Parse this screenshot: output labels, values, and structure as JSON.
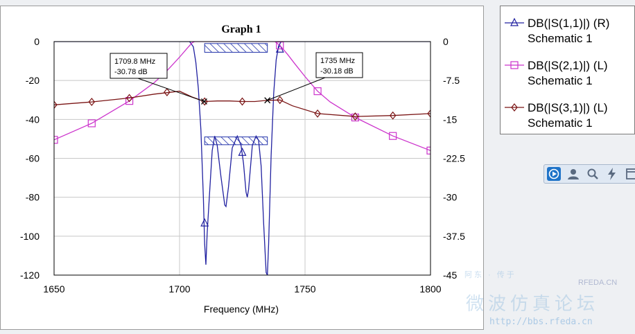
{
  "chart_data": {
    "type": "line",
    "title": "Graph 1",
    "xlabel": "Frequency (MHz)",
    "ylabel": "",
    "y2label": "",
    "xlim": [
      1650,
      1800
    ],
    "ylim": [
      -120,
      0
    ],
    "y2lim": [
      -45,
      0
    ],
    "xticks": [
      "1650",
      "1700",
      "1750",
      "1800"
    ],
    "yticks": [
      "0",
      "-20",
      "-40",
      "-60",
      "-80",
      "-100",
      "-120"
    ],
    "y2ticks": [
      "0",
      "-7.5",
      "-15",
      "-22.5",
      "-30",
      "-37.5",
      "-45"
    ],
    "grid": true,
    "series": [
      {
        "name": "DB(|S(1,1)|) (R)",
        "subname": "Schematic 1",
        "axis": "right",
        "color": "#2020a0",
        "marker": "triangle",
        "x": [
          1650,
          1700,
          1704,
          1705.5,
          1706.5,
          1707.5,
          1708.5,
          1709.5,
          1710,
          1710.5,
          1711,
          1712,
          1713,
          1714,
          1715,
          1716.5,
          1718,
          1718.5,
          1719.5,
          1721,
          1723,
          1724.5,
          1725.5,
          1726.5,
          1727,
          1727.5,
          1729,
          1730.5,
          1731.5,
          1732.5,
          1733.5,
          1734.5,
          1735,
          1735.5,
          1736.5,
          1737.5,
          1738.5,
          1739.5,
          1740.5,
          1742,
          1800
        ],
        "y": [
          0,
          0,
          0,
          -1,
          -4,
          -9,
          -17,
          -30.2,
          -39,
          -43,
          -37,
          -29,
          -21,
          -18.2,
          -20,
          -26,
          -31.5,
          -31.8,
          -28,
          -20.5,
          -18.2,
          -20,
          -23.5,
          -29,
          -30,
          -28.5,
          -20,
          -18.2,
          -19,
          -24,
          -35,
          -44.5,
          -45,
          -39,
          -22,
          -10,
          -3.5,
          -0.8,
          0,
          0,
          0
        ],
        "marker_x": [
          1710,
          1725,
          1740
        ],
        "marker_y": [
          -35,
          -21.4,
          -1.5
        ]
      },
      {
        "name": "DB(|S(2,1)|) (L)",
        "subname": "Schematic 1",
        "axis": "left",
        "color": "#cc33cc",
        "marker": "square",
        "x": [
          1650,
          1665,
          1680,
          1690,
          1695,
          1700,
          1703,
          1705,
          1706,
          1707,
          1709,
          1711,
          1713,
          1715,
          1718,
          1722,
          1726,
          1729,
          1732,
          1734,
          1736,
          1738,
          1740,
          1743,
          1746,
          1750,
          1755,
          1760,
          1770,
          1785,
          1800
        ],
        "y": [
          -50.5,
          -42,
          -30.5,
          -21,
          -15,
          -8,
          -3.5,
          -0.6,
          0,
          0,
          0,
          0,
          0,
          0,
          0,
          0,
          0,
          0,
          0,
          0,
          0,
          0,
          -2,
          -6.5,
          -11.5,
          -18,
          -25.5,
          -31,
          -39,
          -48.5,
          -56
        ],
        "marker_x": [
          1650,
          1665,
          1680,
          1740,
          1755,
          1770,
          1785,
          1800
        ],
        "marker_y": [
          -50.5,
          -42,
          -30.5,
          -2,
          -25.5,
          -39,
          -48.5,
          -56
        ]
      },
      {
        "name": "DB(|S(3,1)|) (L)",
        "subname": "Schematic 1",
        "axis": "left",
        "color": "#7a1414",
        "marker": "diamond",
        "x": [
          1650,
          1665,
          1680,
          1690,
          1700,
          1705,
          1710,
          1715,
          1720,
          1725,
          1730,
          1735,
          1740,
          1745,
          1755,
          1770,
          1785,
          1800
        ],
        "y": [
          -32.5,
          -31,
          -29,
          -27,
          -25.5,
          -28.5,
          -30.8,
          -30.5,
          -30.5,
          -30.8,
          -30.8,
          -30.2,
          -30,
          -33,
          -37,
          -38.5,
          -38,
          -37
        ],
        "marker_x": [
          1650,
          1665,
          1680,
          1695,
          1710,
          1725,
          1740,
          1755,
          1770,
          1785,
          1800
        ],
        "marker_y": [
          -32.5,
          -31,
          -29,
          -26,
          -30.8,
          -30.8,
          -30,
          -37,
          -38.5,
          -38,
          -37
        ]
      }
    ],
    "markers": [
      {
        "freq": "1709.8 MHz",
        "value": "-30.78 dB",
        "x": 1709.8,
        "y": -30.78
      },
      {
        "freq": "1735 MHz",
        "value": "-30.18 dB",
        "x": 1735,
        "y": -30.18
      }
    ],
    "spec_boxes": [
      {
        "x": [
          1710,
          1735
        ],
        "y": [
          -1,
          -5.5
        ]
      },
      {
        "x": [
          1710,
          1735
        ],
        "y": [
          -49,
          -53
        ]
      }
    ]
  },
  "legend": [
    {
      "name": "DB(|S(1,1)|) (R)",
      "sub": "Schematic 1"
    },
    {
      "name": "DB(|S(2,1)|) (L)",
      "sub": "Schematic 1"
    },
    {
      "name": "DB(|S(3,1)|) (L)",
      "sub": "Schematic 1"
    }
  ],
  "toolbar": {
    "buttons": [
      "play-icon",
      "user-icon",
      "search-icon",
      "lightning-icon",
      "window-icon"
    ],
    "accent": "#1e73c8"
  },
  "watermark": {
    "chinese": "微波仿真论坛",
    "url": "http://bbs.rfeda.cn",
    "brand": "RFEDA.CN",
    "top": "阿东 · 传于"
  }
}
